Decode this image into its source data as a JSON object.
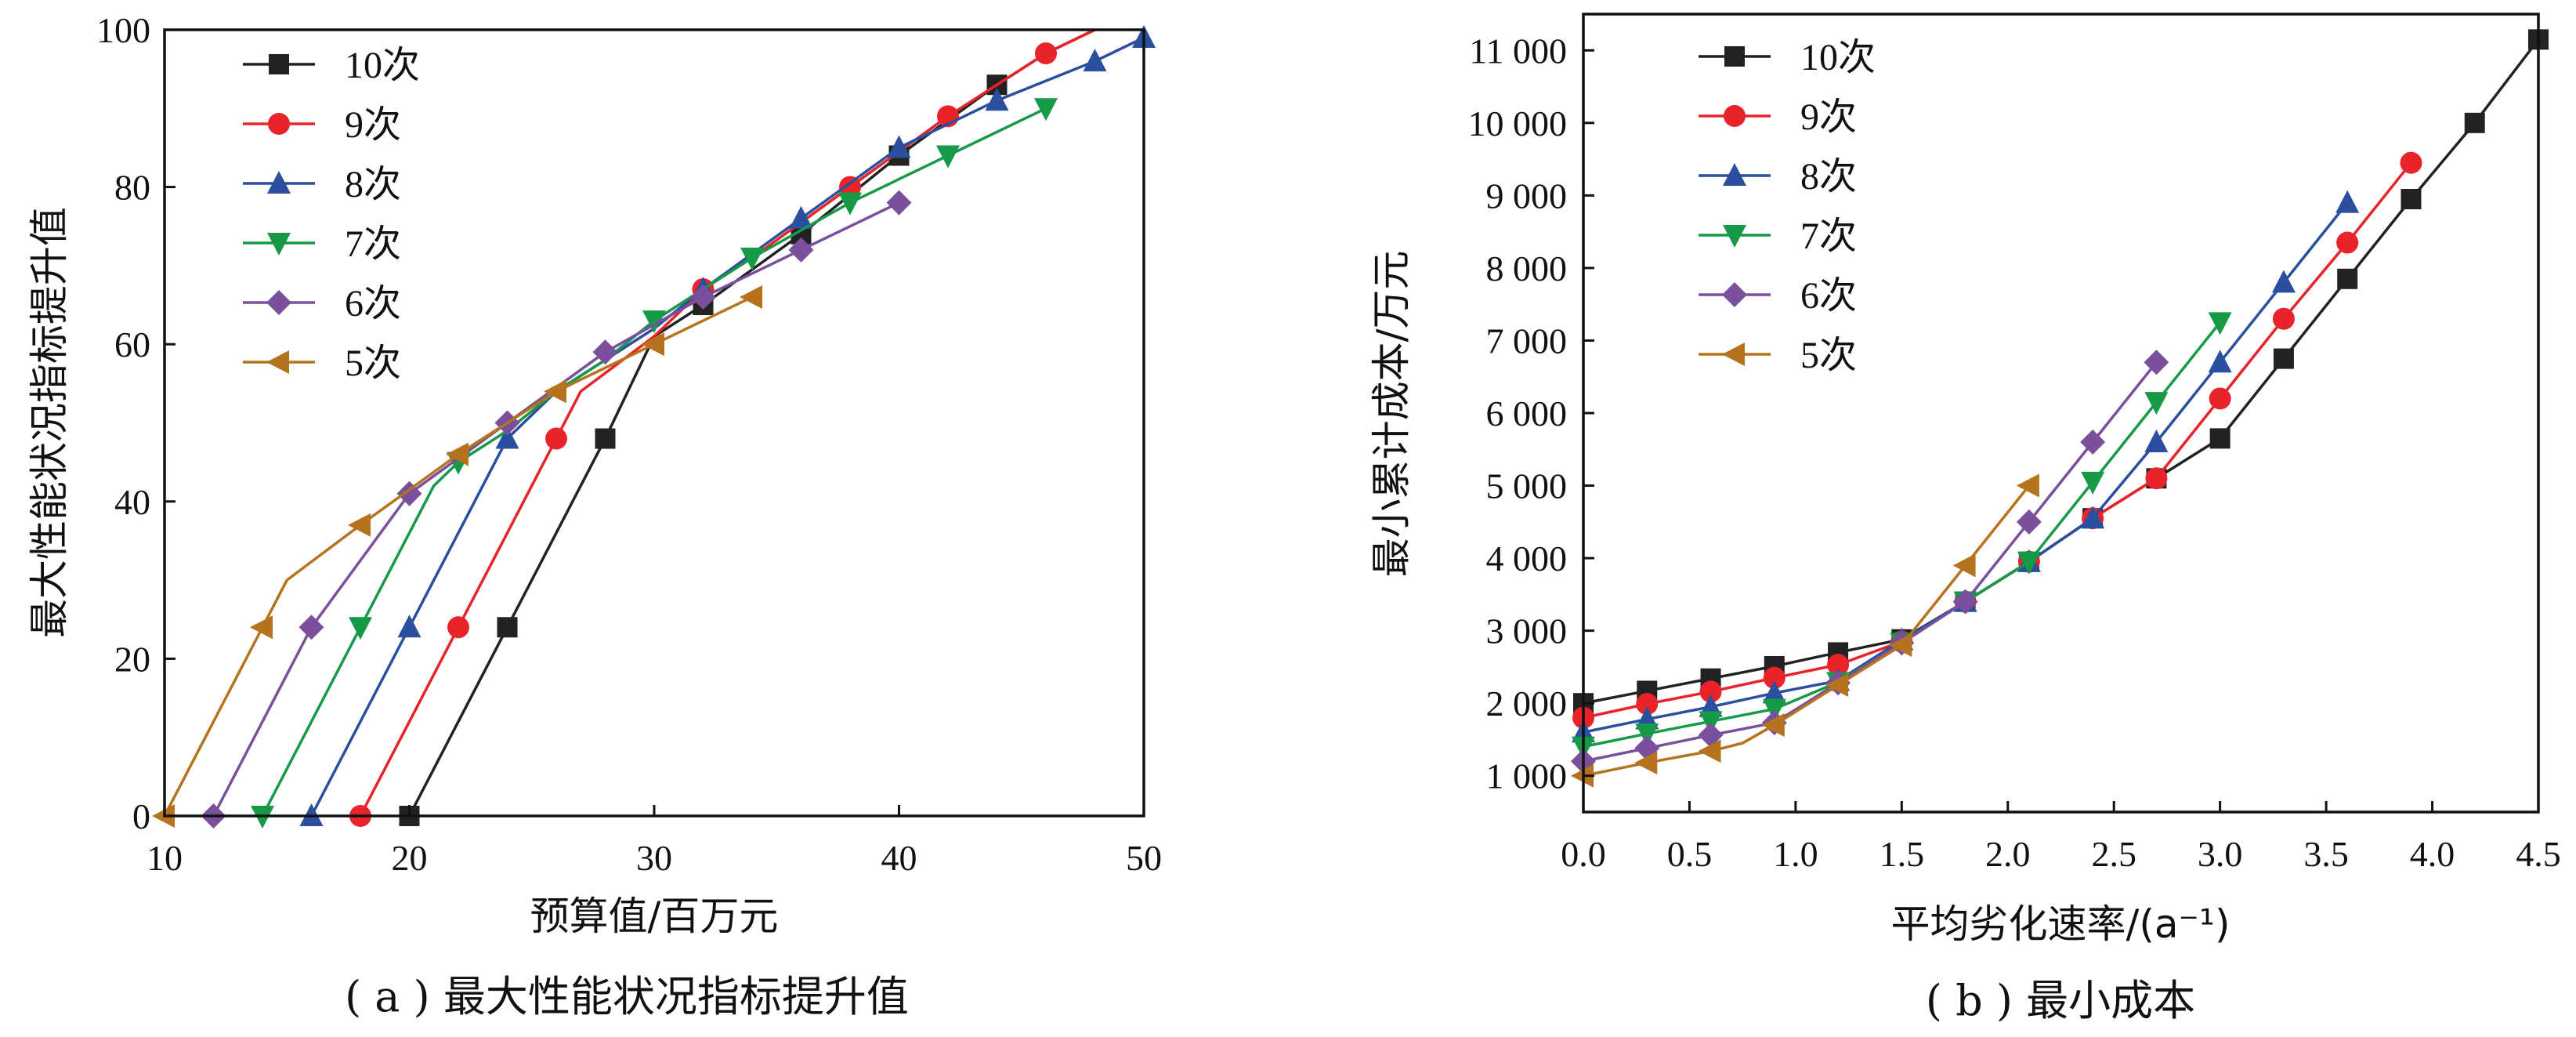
{
  "colors": {
    "10次": "#222222",
    "9次": "#e8232a",
    "8次": "#2a4f9e",
    "7次": "#169a48",
    "6次": "#7a4f9c",
    "5次": "#b5731e"
  },
  "chart_data": [
    {
      "type": "line",
      "caption": "( a ) 最大性能状况指标提升值",
      "xlabel": "预算值/百万元",
      "ylabel": "最大性能状况指标提升值",
      "xlim": [
        10,
        50
      ],
      "ylim": [
        0,
        100
      ],
      "xticks": [
        10,
        20,
        30,
        40,
        50
      ],
      "yticks": [
        0,
        20,
        40,
        60,
        80,
        100
      ],
      "xtick_labels": [
        "10",
        "20",
        "30",
        "40",
        "50"
      ],
      "ytick_labels": [
        "0",
        "20",
        "40",
        "60",
        "80",
        "100"
      ],
      "legend_position": "top-left",
      "series": [
        {
          "name": "10次",
          "marker": "square",
          "color": "#222222",
          "x": [
            20.0,
            24.0,
            28.0,
            30.0,
            32.0,
            36.0,
            40.0,
            44.0,
            46.0,
            48.0
          ],
          "y": [
            0,
            24,
            48,
            61,
            65,
            74,
            84,
            93,
            97,
            100
          ],
          "m": [
            1,
            1,
            1,
            0,
            1,
            1,
            1,
            1,
            0,
            0
          ]
        },
        {
          "name": "9次",
          "marker": "circle",
          "color": "#e8232a",
          "x": [
            18.0,
            22.0,
            26.0,
            27.0,
            30.0,
            32.0,
            34.0,
            38.0,
            42.0,
            46.0,
            48.0
          ],
          "y": [
            0,
            24,
            48,
            54,
            61,
            67,
            71,
            80,
            89,
            97,
            100
          ],
          "m": [
            1,
            1,
            1,
            0,
            0,
            1,
            0,
            1,
            1,
            1,
            0
          ]
        },
        {
          "name": "8次",
          "marker": "triangle-up",
          "color": "#2a4f9e",
          "x": [
            16.0,
            20.0,
            24.0,
            26.0,
            28.0,
            30.0,
            32.0,
            36.0,
            40.0,
            44.0,
            48.0,
            50.0
          ],
          "y": [
            0,
            24,
            48,
            54,
            58,
            62,
            67,
            76,
            85,
            91,
            96,
            99
          ],
          "m": [
            1,
            1,
            1,
            0,
            0,
            0,
            1,
            1,
            1,
            1,
            1,
            1
          ]
        },
        {
          "name": "7次",
          "marker": "triangle-down",
          "color": "#169a48",
          "x": [
            14.0,
            18.0,
            21.0,
            22.0,
            24.0,
            26.0,
            28.0,
            30.0,
            34.0,
            38.0,
            42.0,
            46.0
          ],
          "y": [
            0,
            24,
            42,
            45,
            49,
            54,
            58,
            63,
            71,
            78,
            84,
            90
          ],
          "m": [
            1,
            1,
            0,
            1,
            0,
            0,
            0,
            1,
            1,
            1,
            1,
            1
          ]
        },
        {
          "name": "6次",
          "marker": "diamond",
          "color": "#7a4f9c",
          "x": [
            12.0,
            16.0,
            20.0,
            24.0,
            28.0,
            32.0,
            36.0,
            40.0
          ],
          "y": [
            0,
            24,
            41,
            50,
            59,
            66,
            72,
            78
          ],
          "m": [
            1,
            1,
            1,
            1,
            1,
            1,
            1,
            1
          ]
        },
        {
          "name": "5次",
          "marker": "triangle-left",
          "color": "#b5731e",
          "x": [
            10.0,
            14.0,
            15.0,
            18.0,
            22.0,
            26.0,
            30.0,
            34.0
          ],
          "y": [
            0,
            24,
            30,
            37,
            46,
            54,
            60,
            66
          ],
          "m": [
            1,
            1,
            0,
            1,
            1,
            1,
            1,
            1
          ]
        }
      ]
    },
    {
      "type": "line",
      "caption": "( b ) 最小成本",
      "xlabel": "平均劣化速率/(a⁻¹)",
      "ylabel": "最小累计成本/万元",
      "xlim": [
        0,
        4.5
      ],
      "ylim": [
        500,
        11500
      ],
      "xticks": [
        0,
        0.5,
        1.0,
        1.5,
        2.0,
        2.5,
        3.0,
        3.5,
        4.0,
        4.5
      ],
      "yticks": [
        1000,
        2000,
        3000,
        4000,
        5000,
        6000,
        7000,
        8000,
        9000,
        10000,
        11000
      ],
      "xtick_labels": [
        "0.0",
        "0.5",
        "1.0",
        "1.5",
        "2.0",
        "2.5",
        "3.0",
        "3.5",
        "4.0",
        "4.5"
      ],
      "ytick_labels": [
        "1 000",
        "2 000",
        "3 000",
        "4 000",
        "5 000",
        "6 000",
        "7 000",
        "8 000",
        "9 000",
        "10 000",
        "11 000"
      ],
      "legend_position": "top-left",
      "series": [
        {
          "name": "10次",
          "marker": "square",
          "color": "#222222",
          "x": [
            0.0,
            0.3,
            0.6,
            0.9,
            1.2,
            1.5,
            1.8,
            2.1,
            2.4,
            2.7,
            3.0,
            3.3,
            3.6,
            3.9,
            4.2,
            4.5
          ],
          "y": [
            2000,
            2170,
            2340,
            2510,
            2700,
            2880,
            3400,
            3950,
            4550,
            5100,
            5650,
            6750,
            7850,
            8950,
            10000,
            11150
          ],
          "m": [
            1,
            1,
            1,
            1,
            1,
            1,
            1,
            1,
            1,
            1,
            1,
            1,
            1,
            1,
            1,
            1
          ]
        },
        {
          "name": "9次",
          "marker": "circle",
          "color": "#e8232a",
          "x": [
            0.0,
            0.3,
            0.6,
            0.9,
            1.2,
            1.5,
            1.8,
            2.1,
            2.4,
            2.7,
            3.0,
            3.3,
            3.6,
            3.9
          ],
          "y": [
            1800,
            1990,
            2160,
            2350,
            2530,
            2850,
            3400,
            3950,
            4550,
            5100,
            6200,
            7300,
            8350,
            9450
          ],
          "m": [
            1,
            1,
            1,
            1,
            1,
            1,
            1,
            1,
            1,
            1,
            1,
            1,
            1,
            1
          ]
        },
        {
          "name": "8次",
          "marker": "triangle-up",
          "color": "#2a4f9e",
          "x": [
            0.0,
            0.3,
            0.6,
            0.9,
            1.2,
            1.5,
            1.8,
            2.1,
            2.4,
            2.7,
            3.0,
            3.3,
            3.6
          ],
          "y": [
            1600,
            1780,
            1950,
            2140,
            2310,
            2870,
            3400,
            3950,
            4550,
            5600,
            6700,
            7800,
            8900
          ],
          "m": [
            1,
            1,
            1,
            1,
            1,
            1,
            1,
            1,
            1,
            1,
            1,
            1,
            1
          ]
        },
        {
          "name": "7次",
          "marker": "triangle-down",
          "color": "#169a48",
          "x": [
            0.0,
            0.3,
            0.6,
            0.9,
            1.2,
            1.5,
            1.8,
            2.1,
            2.4,
            2.7,
            3.0
          ],
          "y": [
            1400,
            1580,
            1750,
            1920,
            2290,
            2830,
            3400,
            3950,
            5050,
            6150,
            7250
          ],
          "m": [
            1,
            1,
            1,
            1,
            1,
            1,
            1,
            1,
            1,
            1,
            1
          ]
        },
        {
          "name": "6次",
          "marker": "diamond",
          "color": "#7a4f9c",
          "x": [
            0.0,
            0.3,
            0.6,
            0.9,
            1.2,
            1.5,
            1.8,
            2.1,
            2.4,
            2.7
          ],
          "y": [
            1200,
            1380,
            1560,
            1730,
            2280,
            2830,
            3400,
            4500,
            5600,
            6700
          ],
          "m": [
            1,
            1,
            1,
            1,
            1,
            1,
            1,
            1,
            1,
            1
          ]
        },
        {
          "name": "5次",
          "marker": "triangle-left",
          "color": "#b5731e",
          "x": [
            0.0,
            0.3,
            0.6,
            0.75,
            0.9,
            1.2,
            1.5,
            1.8,
            2.1
          ],
          "y": [
            1000,
            1180,
            1340,
            1450,
            1700,
            2250,
            2800,
            3900,
            5000
          ],
          "m": [
            1,
            1,
            1,
            0,
            1,
            1,
            1,
            1,
            1
          ]
        }
      ]
    }
  ]
}
